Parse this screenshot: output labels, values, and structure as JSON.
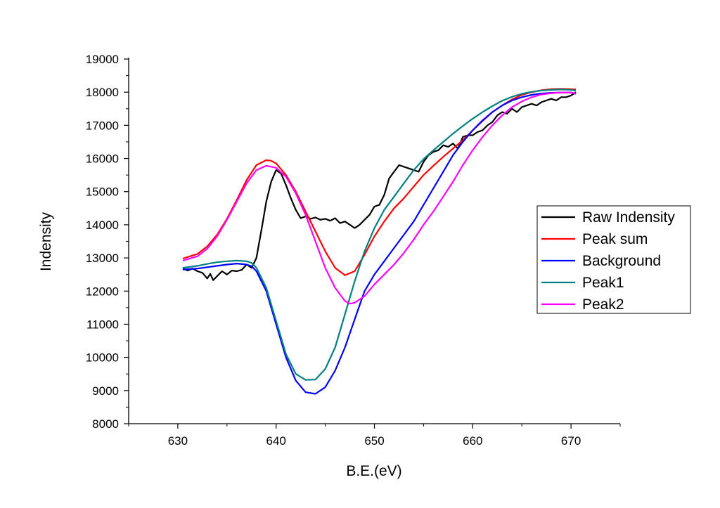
{
  "chart_data": {
    "type": "line",
    "title": "",
    "xlabel": "B.E.(eV)",
    "ylabel": "Indensity",
    "xlim": [
      625,
      675
    ],
    "ylim": [
      8000,
      19000
    ],
    "x_ticks": [
      630,
      640,
      650,
      660,
      670
    ],
    "y_ticks": [
      8000,
      9000,
      10000,
      11000,
      12000,
      13000,
      14000,
      15000,
      16000,
      17000,
      18000,
      19000
    ],
    "grid": false,
    "legend_position": "right",
    "series": [
      {
        "name": "Raw Indensity",
        "color": "#000000",
        "x": [
          630.5,
          631,
          631.5,
          632,
          632.5,
          633,
          633.3,
          633.6,
          634,
          634.5,
          635,
          635.5,
          636,
          636.5,
          637,
          637.5,
          638,
          638.3,
          638.6,
          639,
          639.5,
          640,
          640.5,
          641,
          641.5,
          642,
          642.5,
          643,
          643.5,
          644,
          644.5,
          645,
          645.5,
          646,
          646.5,
          647,
          647.5,
          648,
          648.5,
          649,
          649.5,
          650,
          650.5,
          651,
          651.5,
          652,
          652.5,
          653,
          653.5,
          654,
          654.5,
          655,
          655.5,
          656,
          656.5,
          657,
          657.5,
          658,
          658.5,
          659,
          659.5,
          660,
          660.5,
          661,
          661.5,
          662,
          662.5,
          663,
          663.5,
          664,
          664.5,
          665,
          665.5,
          666,
          666.5,
          667,
          667.5,
          668,
          668.5,
          669,
          669.5,
          670,
          670.5
        ],
        "y": [
          12680,
          12620,
          12680,
          12600,
          12550,
          12380,
          12520,
          12330,
          12450,
          12600,
          12500,
          12620,
          12600,
          12640,
          12800,
          12700,
          13000,
          13500,
          14000,
          14700,
          15300,
          15650,
          15550,
          15200,
          14800,
          14450,
          14200,
          14250,
          14180,
          14220,
          14150,
          14180,
          14120,
          14200,
          14050,
          14100,
          14000,
          13900,
          14000,
          14150,
          14300,
          14550,
          14600,
          14900,
          15400,
          15600,
          15800,
          15750,
          15700,
          15650,
          15600,
          15900,
          16100,
          16200,
          16250,
          16400,
          16350,
          16450,
          16300,
          16650,
          16700,
          16700,
          16800,
          16850,
          17000,
          17100,
          17300,
          17400,
          17350,
          17500,
          17400,
          17550,
          17600,
          17650,
          17600,
          17700,
          17750,
          17800,
          17750,
          17850,
          17850,
          17900,
          18000
        ]
      },
      {
        "name": "Peak sum",
        "color": "#ff0000",
        "x": [
          630.5,
          632,
          633,
          634,
          635,
          636,
          637,
          638,
          639,
          639.5,
          640,
          641,
          642,
          643,
          644,
          645,
          646,
          647,
          648,
          649,
          650,
          651,
          652,
          653,
          654,
          655,
          656,
          657,
          658,
          659,
          660,
          661,
          662,
          663,
          664,
          665,
          666,
          667,
          668,
          669,
          670,
          670.5
        ],
        "y": [
          12980,
          13120,
          13350,
          13700,
          14180,
          14750,
          15350,
          15800,
          15950,
          15930,
          15850,
          15500,
          15000,
          14400,
          13800,
          13200,
          12700,
          12480,
          12600,
          13100,
          13650,
          14100,
          14500,
          14800,
          15150,
          15500,
          15780,
          16050,
          16300,
          16550,
          16850,
          17130,
          17400,
          17600,
          17780,
          17920,
          18000,
          18060,
          18090,
          18100,
          18090,
          18080
        ]
      },
      {
        "name": "Background",
        "color": "#0000ff",
        "x": [
          630.5,
          632,
          633,
          634,
          635,
          636,
          637,
          637.5,
          638,
          639,
          640,
          641,
          642,
          643,
          644,
          645,
          646,
          647,
          648,
          649,
          650,
          651,
          652,
          653,
          654,
          655,
          656,
          657,
          658,
          659,
          660,
          661,
          662,
          663,
          664,
          665,
          666,
          667,
          668,
          669,
          670,
          670.5
        ],
        "y": [
          12650,
          12680,
          12720,
          12760,
          12800,
          12830,
          12800,
          12750,
          12600,
          12000,
          11000,
          10000,
          9300,
          8950,
          8900,
          9100,
          9600,
          10300,
          11150,
          12000,
          12500,
          12900,
          13300,
          13700,
          14100,
          14600,
          15100,
          15600,
          16100,
          16500,
          16850,
          17150,
          17400,
          17600,
          17750,
          17850,
          17920,
          17960,
          17980,
          17990,
          17990,
          17950
        ]
      },
      {
        "name": "Peak1",
        "color": "#008080",
        "x": [
          630.5,
          632,
          633,
          634,
          635,
          636,
          637,
          637.5,
          638,
          639,
          640,
          641,
          642,
          643,
          644,
          645,
          646,
          647,
          648,
          649,
          650,
          651,
          652,
          653,
          654,
          655,
          656,
          657,
          658,
          659,
          660,
          661,
          662,
          663,
          664,
          665,
          666,
          667,
          668,
          669,
          670,
          670.5
        ],
        "y": [
          12700,
          12760,
          12820,
          12870,
          12900,
          12920,
          12900,
          12850,
          12700,
          12100,
          11100,
          10100,
          9500,
          9320,
          9330,
          9650,
          10300,
          11300,
          12300,
          13200,
          13900,
          14450,
          14850,
          15250,
          15650,
          15980,
          16250,
          16500,
          16750,
          16980,
          17200,
          17400,
          17580,
          17740,
          17860,
          17950,
          18010,
          18050,
          18070,
          18080,
          18070,
          18050
        ]
      },
      {
        "name": "Peak2",
        "color": "#ff00ff",
        "x": [
          630.5,
          632,
          633,
          634,
          635,
          636,
          637,
          638,
          639,
          640,
          641,
          642,
          643,
          644,
          645,
          646,
          647,
          647.5,
          648,
          649,
          650,
          651,
          652,
          653,
          654,
          655,
          656,
          657,
          658,
          659,
          660,
          661,
          662,
          663,
          664,
          665,
          666,
          667,
          668,
          669,
          670,
          670.5
        ],
        "y": [
          12920,
          13050,
          13280,
          13650,
          14150,
          14700,
          15250,
          15650,
          15780,
          15720,
          15450,
          14950,
          14300,
          13500,
          12700,
          12100,
          11700,
          11620,
          11650,
          11850,
          12200,
          12500,
          12800,
          13150,
          13550,
          14000,
          14400,
          14850,
          15300,
          15800,
          16250,
          16650,
          17000,
          17300,
          17550,
          17720,
          17850,
          17930,
          17970,
          17990,
          17990,
          17960
        ]
      }
    ]
  }
}
